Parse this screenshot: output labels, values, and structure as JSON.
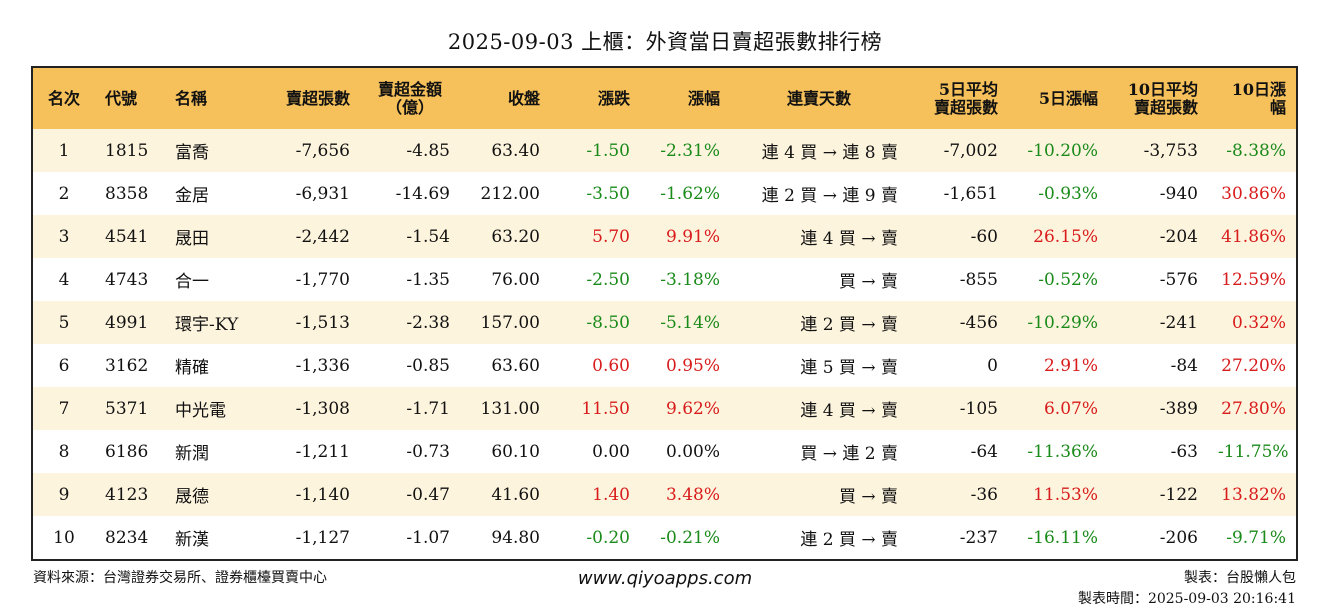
{
  "title": "2025-09-03 上櫃：外資當日賣超張數排行榜",
  "headers": {
    "rank": "名次",
    "code": "代號",
    "name": "名稱",
    "sell_lots": "賣超張數",
    "sell_amount_1": "賣超金額",
    "sell_amount_2": "（億）",
    "close": "收盤",
    "change": "漲跌",
    "pct": "漲幅",
    "streak": "連賣天數",
    "avg5_1": "5日平均",
    "avg5_2": "賣超張數",
    "pct5": "5日漲幅",
    "avg10_1": "10日平均",
    "avg10_2": "賣超張數",
    "pct10": "10日漲幅"
  },
  "rows": [
    {
      "rank": "1",
      "code": "1815",
      "name": "富喬",
      "lots": "-7,656",
      "amount": "-4.85",
      "close": "63.40",
      "change": "-1.50",
      "change_dir": "down",
      "pct": "-2.31%",
      "pct_dir": "down",
      "streak": "連 4 買 → 連 8 賣",
      "avg5": "-7,002",
      "pct5": "-10.20%",
      "pct5_dir": "down",
      "avg10": "-3,753",
      "pct10": "-8.38%",
      "pct10_dir": "down"
    },
    {
      "rank": "2",
      "code": "8358",
      "name": "金居",
      "lots": "-6,931",
      "amount": "-14.69",
      "close": "212.00",
      "change": "-3.50",
      "change_dir": "down",
      "pct": "-1.62%",
      "pct_dir": "down",
      "streak": "連 2 買 → 連 9 賣",
      "avg5": "-1,651",
      "pct5": "-0.93%",
      "pct5_dir": "down",
      "avg10": "-940",
      "pct10": "30.86%",
      "pct10_dir": "up"
    },
    {
      "rank": "3",
      "code": "4541",
      "name": "晟田",
      "lots": "-2,442",
      "amount": "-1.54",
      "close": "63.20",
      "change": "5.70",
      "change_dir": "up",
      "pct": "9.91%",
      "pct_dir": "up",
      "streak": "連 4 買 → 賣",
      "avg5": "-60",
      "pct5": "26.15%",
      "pct5_dir": "up",
      "avg10": "-204",
      "pct10": "41.86%",
      "pct10_dir": "up"
    },
    {
      "rank": "4",
      "code": "4743",
      "name": "合一",
      "lots": "-1,770",
      "amount": "-1.35",
      "close": "76.00",
      "change": "-2.50",
      "change_dir": "down",
      "pct": "-3.18%",
      "pct_dir": "down",
      "streak": "買 → 賣",
      "avg5": "-855",
      "pct5": "-0.52%",
      "pct5_dir": "down",
      "avg10": "-576",
      "pct10": "12.59%",
      "pct10_dir": "up"
    },
    {
      "rank": "5",
      "code": "4991",
      "name": "環宇-KY",
      "lots": "-1,513",
      "amount": "-2.38",
      "close": "157.00",
      "change": "-8.50",
      "change_dir": "down",
      "pct": "-5.14%",
      "pct_dir": "down",
      "streak": "連 2 買 → 賣",
      "avg5": "-456",
      "pct5": "-10.29%",
      "pct5_dir": "down",
      "avg10": "-241",
      "pct10": "0.32%",
      "pct10_dir": "up"
    },
    {
      "rank": "6",
      "code": "3162",
      "name": "精確",
      "lots": "-1,336",
      "amount": "-0.85",
      "close": "63.60",
      "change": "0.60",
      "change_dir": "up",
      "pct": "0.95%",
      "pct_dir": "up",
      "streak": "連 5 買 → 賣",
      "avg5": "0",
      "pct5": "2.91%",
      "pct5_dir": "up",
      "avg10": "-84",
      "pct10": "27.20%",
      "pct10_dir": "up"
    },
    {
      "rank": "7",
      "code": "5371",
      "name": "中光電",
      "lots": "-1,308",
      "amount": "-1.71",
      "close": "131.00",
      "change": "11.50",
      "change_dir": "up",
      "pct": "9.62%",
      "pct_dir": "up",
      "streak": "連 4 買 → 賣",
      "avg5": "-105",
      "pct5": "6.07%",
      "pct5_dir": "up",
      "avg10": "-389",
      "pct10": "27.80%",
      "pct10_dir": "up"
    },
    {
      "rank": "8",
      "code": "6186",
      "name": "新潤",
      "lots": "-1,211",
      "amount": "-0.73",
      "close": "60.10",
      "change": "0.00",
      "change_dir": "flat",
      "pct": "0.00%",
      "pct_dir": "flat",
      "streak": "買 → 連 2 賣",
      "avg5": "-64",
      "pct5": "-11.36%",
      "pct5_dir": "down",
      "avg10": "-63",
      "pct10": "-11.75%",
      "pct10_dir": "down"
    },
    {
      "rank": "9",
      "code": "4123",
      "name": "晟德",
      "lots": "-1,140",
      "amount": "-0.47",
      "close": "41.60",
      "change": "1.40",
      "change_dir": "up",
      "pct": "3.48%",
      "pct_dir": "up",
      "streak": "買 → 賣",
      "avg5": "-36",
      "pct5": "11.53%",
      "pct5_dir": "up",
      "avg10": "-122",
      "pct10": "13.82%",
      "pct10_dir": "up"
    },
    {
      "rank": "10",
      "code": "8234",
      "name": "新漢",
      "lots": "-1,127",
      "amount": "-1.07",
      "close": "94.80",
      "change": "-0.20",
      "change_dir": "down",
      "pct": "-0.21%",
      "pct_dir": "down",
      "streak": "連 2 買 → 賣",
      "avg5": "-237",
      "pct5": "-16.11%",
      "pct5_dir": "down",
      "avg10": "-206",
      "pct10": "-9.71%",
      "pct10_dir": "down"
    }
  ],
  "colors": {
    "header_bg": "#f6c15a",
    "stripe_bg": "#fdf4de",
    "up": "#d81b1b",
    "down": "#1a8a1a"
  },
  "footer": {
    "source": "資料來源：台灣證券交易所、證券櫃檯買賣中心",
    "website": "www.qiyoapps.com",
    "maker": "製表：台股懶人包",
    "time": "製表時間：2025-09-03 20:16:41"
  }
}
